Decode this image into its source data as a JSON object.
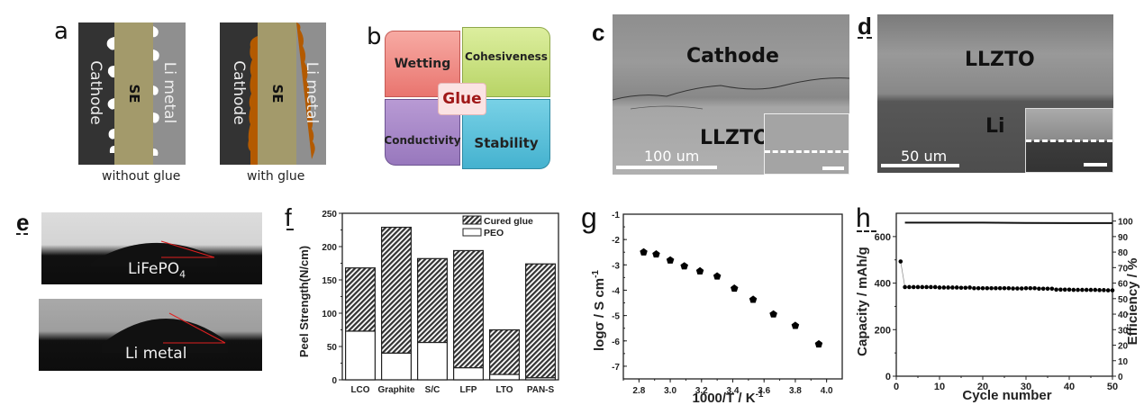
{
  "figure": {
    "panel_labels": {
      "a": "a",
      "b": "b",
      "c": "c",
      "d": "d",
      "e": "e",
      "f": "f",
      "g": "g",
      "h": "h"
    },
    "panel_a": {
      "left": {
        "cathode": "Cathode",
        "se": "SE",
        "li": "Li metal",
        "caption": "without glue"
      },
      "right": {
        "cathode": "Cathode",
        "se": "SE",
        "li": "Li metal",
        "caption": "with glue"
      },
      "colors": {
        "cathode": "#333333",
        "se": "#a39a6b",
        "li": "#8f8f8f",
        "void": "#ffffff",
        "glue": "#b35a00"
      }
    },
    "panel_b": {
      "center": "Glue",
      "quadrants": [
        {
          "label": "Wetting",
          "color": "#f08a84"
        },
        {
          "label": "Cohesiveness",
          "color": "#c7e07e"
        },
        {
          "label": "Conductivity",
          "color": "#a98cc9"
        },
        {
          "label": "Stability",
          "color": "#5cc3dc"
        }
      ],
      "center_text_color": "#a01818"
    },
    "panel_c": {
      "top_label": "Cathode",
      "bottom_label": "LLZTO",
      "scale_bar": "100 um"
    },
    "panel_d": {
      "top_label": "LLZTO",
      "bottom_label": "Li",
      "scale_bar": "50 um"
    },
    "panel_e": {
      "top_label": "LiFePO",
      "top_label_sub": "4",
      "bottom_label": "Li metal"
    }
  },
  "chart_data": [
    {
      "id": "f",
      "type": "bar",
      "stacked": true,
      "title": "",
      "xlabel": "",
      "ylabel": "Peel  Strength(N/cm)",
      "ylim": [
        0,
        250
      ],
      "yticks": [
        0,
        50,
        100,
        150,
        200,
        250
      ],
      "categories": [
        "LCO",
        "Graphite",
        "S/C",
        "LFP",
        "LTO",
        "PAN-S"
      ],
      "series": [
        {
          "name": "PEO",
          "values": [
            73,
            40,
            56,
            18,
            8,
            3
          ],
          "pattern": "open"
        },
        {
          "name": "Cured glue",
          "values": [
            168,
            229,
            182,
            194,
            75,
            174
          ],
          "pattern": "hatched",
          "note": "total bar height"
        }
      ],
      "legend": "top-right"
    },
    {
      "id": "g",
      "type": "scatter",
      "title": "",
      "xlabel": "1000/T / K",
      "xlabel_sup": "-1",
      "ylabel": "logσ / S cm",
      "ylabel_sup": "-1",
      "xlim": [
        2.7,
        4.1
      ],
      "ylim": [
        -7.5,
        -1
      ],
      "xticks": [
        2.8,
        3.0,
        3.2,
        3.4,
        3.6,
        3.8,
        4.0
      ],
      "yticks": [
        -7,
        -6,
        -5,
        -4,
        -3,
        -2,
        -1
      ],
      "x": [
        2.83,
        2.91,
        3.0,
        3.09,
        3.19,
        3.3,
        3.41,
        3.53,
        3.66,
        3.8,
        3.95
      ],
      "y": [
        -2.5,
        -2.58,
        -2.82,
        -3.05,
        -3.25,
        -3.45,
        -3.93,
        -4.37,
        -4.95,
        -5.4,
        -6.13
      ],
      "marker": "pentagon"
    },
    {
      "id": "h",
      "type": "line",
      "title": "",
      "xlabel": "Cycle number",
      "ylabel": "Capacity / mAh/g",
      "ylabel_right": "Efficiency / %",
      "xlim": [
        0,
        50
      ],
      "ylim": [
        0,
        700
      ],
      "ylim_right": [
        0,
        105
      ],
      "xticks": [
        0,
        10,
        20,
        30,
        40,
        50
      ],
      "yticks": [
        0,
        200,
        400,
        600
      ],
      "yticks_right": [
        0,
        10,
        20,
        30,
        40,
        50,
        60,
        70,
        80,
        90,
        100
      ],
      "series": [
        {
          "name": "Capacity",
          "axis": "left",
          "x": [
            1,
            2,
            3,
            4,
            5,
            6,
            7,
            8,
            9,
            10,
            11,
            12,
            13,
            14,
            15,
            16,
            17,
            18,
            19,
            20,
            21,
            22,
            23,
            24,
            25,
            26,
            27,
            28,
            29,
            30,
            31,
            32,
            33,
            34,
            35,
            36,
            37,
            38,
            39,
            40,
            41,
            42,
            43,
            44,
            45,
            46,
            47,
            48,
            49,
            50
          ],
          "values": [
            493,
            383,
            383,
            383,
            383,
            383,
            383,
            383,
            383,
            381,
            381,
            381,
            381,
            381,
            380,
            380,
            381,
            378,
            378,
            378,
            378,
            378,
            378,
            378,
            378,
            378,
            377,
            377,
            377,
            378,
            378,
            378,
            376,
            376,
            376,
            376,
            372,
            372,
            372,
            372,
            371,
            371,
            371,
            371,
            371,
            371,
            370,
            370,
            369,
            369
          ]
        },
        {
          "name": "Efficiency",
          "axis": "right",
          "x": [
            2,
            10,
            20,
            30,
            40,
            50
          ],
          "values": [
            99,
            99,
            99,
            98.8,
            98.7,
            98.7
          ]
        }
      ]
    }
  ]
}
